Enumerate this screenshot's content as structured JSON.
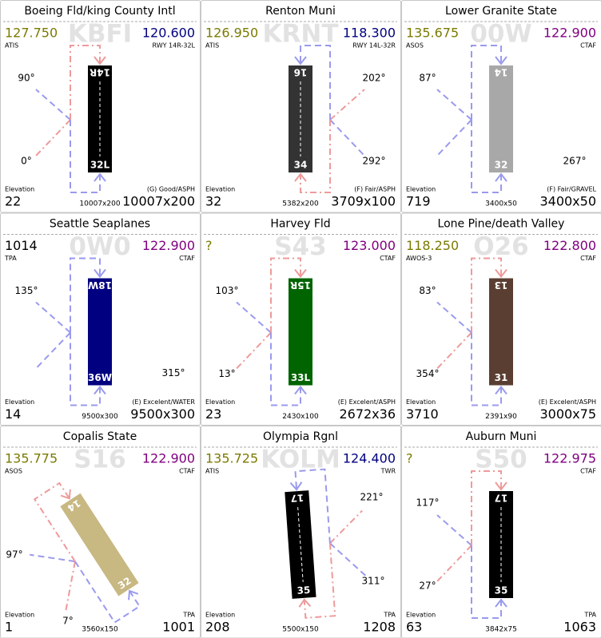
{
  "airports": [
    {
      "name": "Boeing Fld/king County Intl",
      "ident": "KBFI",
      "freq_left": "127.750",
      "freq_left_label": "ATIS",
      "freq_left_color": "#7a7a00",
      "freq_right": "120.600",
      "freq_right_label": "RWY 14R-32L",
      "freq_right_color": "#000080",
      "runway_top": "14R",
      "runway_bottom": "32L",
      "runway_color": "#000000",
      "angle_top": "90°",
      "angle_bottom": "0°",
      "elevation_label": "Elevation",
      "elevation": 22,
      "length_small": "10007x200",
      "note": "(G) Good/ASPH",
      "note_value": "10007x200"
    },
    {
      "name": "Renton Muni",
      "ident": "KRNT",
      "freq_left": "126.950",
      "freq_left_label": "ATIS",
      "freq_left_color": "#7a7a00",
      "freq_right": "118.300",
      "freq_right_label": "RWY 14L-32R",
      "freq_right_color": "#000080",
      "runway_top": "16",
      "runway_bottom": "34",
      "runway_color": "#333333",
      "angle_top": "202°",
      "angle_bottom": "292°",
      "elevation_label": "Elevation",
      "elevation": 32,
      "length_small": "5382x200",
      "note": "(F) Fair/ASPH",
      "note_value": "3709x100"
    },
    {
      "name": "Lower Granite State",
      "ident": "00W",
      "freq_left": "135.675",
      "freq_left_label": "ASOS",
      "freq_left_color": "#7a7a00",
      "freq_right": "122.900",
      "freq_right_label": "CTAF",
      "freq_right_color": "#800080",
      "runway_top": "14",
      "runway_bottom": "32",
      "runway_color": "#a8a8a8",
      "angle_top": "87°",
      "angle_bottom": "267°",
      "elevation_label": "Elevation",
      "elevation": 719,
      "length_small": "3400x50",
      "note": "(F) Fair/GRAVEL",
      "note_value": "3400x50"
    },
    {
      "name": "Seattle Seaplanes",
      "ident": "0W0",
      "freq_left": 1014,
      "freq_left_label": "TPA",
      "freq_left_color": "#000000",
      "freq_right": "122.900",
      "freq_right_label": "CTAF",
      "freq_right_color": "#800080",
      "runway_top": "18W",
      "runway_bottom": "36W",
      "runway_color": "#000080",
      "angle_top": "135°",
      "angle_bottom": "315°",
      "elevation_label": "Elevation",
      "elevation": 14,
      "length_small": "9500x300",
      "note": "(E) Excelent/WATER",
      "note_value": "9500x300"
    },
    {
      "name": "Harvey Fld",
      "ident": "S43",
      "freq_left": "?",
      "freq_left_label": "",
      "freq_left_color": "#7a7a00",
      "freq_right": "123.000",
      "freq_right_label": "CTAF",
      "freq_right_color": "#800080",
      "runway_top": "15R",
      "runway_bottom": "33L",
      "runway_color": "#006400",
      "angle_top": "103°",
      "angle_bottom": "13°",
      "elevation_label": "Elevation",
      "elevation": 23,
      "length_small": "2430x100",
      "note": "(E) Excelent/ASPH",
      "note_value": "2672x36"
    },
    {
      "name": "Lone Pine/death Valley",
      "ident": "O26",
      "freq_left": "118.250",
      "freq_left_label": "AWOS-3",
      "freq_left_color": "#7a7a00",
      "freq_right": "122.800",
      "freq_right_label": "CTAF",
      "freq_right_color": "#800080",
      "runway_top": "13",
      "runway_bottom": "31",
      "runway_color": "#5a3e32",
      "angle_top": "83°",
      "angle_bottom": "354°",
      "elevation_label": "Elevation",
      "elevation": 3710,
      "length_small": "2391x90",
      "note": "(E) Excelent/ASPH",
      "note_value": "3000x75"
    },
    {
      "name": "Copalis State",
      "ident": "S16",
      "freq_left": "135.775",
      "freq_left_label": "ASOS",
      "freq_left_color": "#7a7a00",
      "freq_right": "122.900",
      "freq_right_label": "CTAF",
      "freq_right_color": "#800080",
      "runway_top": "14",
      "runway_bottom": "32",
      "runway_color": "#c8b882",
      "angle_top": "97°",
      "angle_bottom": "7°",
      "elevation_label": "Elevation",
      "elevation": 1,
      "length_small": "3560x150",
      "note": "TPA",
      "note_value": 1001
    },
    {
      "name": "Olympia Rgnl",
      "ident": "KOLM",
      "freq_left": "135.725",
      "freq_left_label": "ATIS",
      "freq_left_color": "#7a7a00",
      "freq_right": "124.400",
      "freq_right_label": "TWR",
      "freq_right_color": "#000080",
      "runway_top": "17",
      "runway_bottom": "35",
      "runway_color": "#000000",
      "angle_top": "221°",
      "angle_bottom": "311°",
      "elevation_label": "Elevation",
      "elevation": 208,
      "length_small": "5500x150",
      "note": "TPA",
      "note_value": 1208
    },
    {
      "name": "Auburn Muni",
      "ident": "S50",
      "freq_left": "?",
      "freq_left_label": "",
      "freq_left_color": "#7a7a00",
      "freq_right": "122.975",
      "freq_right_label": "CTAF",
      "freq_right_color": "#800080",
      "runway_top": "17",
      "runway_bottom": "35",
      "runway_color": "#000000",
      "angle_top": "117°",
      "angle_bottom": "27°",
      "elevation_label": "Elevation",
      "elevation": 63,
      "length_small": "3842x75",
      "note": "TPA",
      "note_value": 1063
    }
  ]
}
